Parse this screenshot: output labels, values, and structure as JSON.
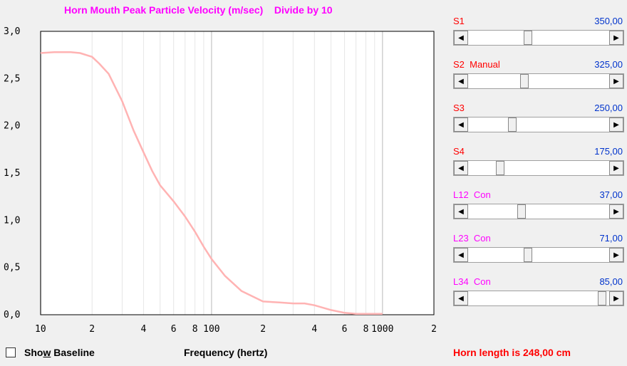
{
  "chart_data": {
    "type": "line",
    "title": "Horn Mouth Peak Particle Velocity (m/sec)    Divide by 10",
    "xlabel": "Frequency (hertz)",
    "ylabel": "",
    "xscale": "log",
    "xlim": [
      10,
      2000
    ],
    "ylim": [
      0,
      3
    ],
    "y_tick_labels": [
      "0,0",
      "0,5",
      "1,0",
      "1,5",
      "2,0",
      "2,5",
      "3,0"
    ],
    "x_tick_labels": [
      "10",
      "2",
      "4",
      "6",
      "8",
      "100",
      "2",
      "4",
      "6",
      "8",
      "1000",
      "2"
    ],
    "grid": true,
    "series": [
      {
        "color": "#ffb3b3",
        "x": [
          10,
          12,
          15,
          17,
          20,
          22,
          25,
          30,
          35,
          40,
          45,
          50,
          60,
          70,
          80,
          90,
          100,
          120,
          150,
          200,
          250,
          300,
          350,
          400,
          500,
          600,
          700,
          800,
          1000
        ],
        "y": [
          2.77,
          2.78,
          2.78,
          2.77,
          2.73,
          2.66,
          2.55,
          2.26,
          1.95,
          1.72,
          1.52,
          1.37,
          1.2,
          1.04,
          0.88,
          0.72,
          0.59,
          0.41,
          0.25,
          0.14,
          0.13,
          0.12,
          0.12,
          0.1,
          0.05,
          0.02,
          0.01,
          0.01,
          0.01
        ]
      }
    ]
  },
  "sliders": [
    {
      "name": "S1",
      "value": "350,00",
      "name_color": "#ff0000",
      "position": 0.42
    },
    {
      "name": "S2  Manual",
      "value": "325,00",
      "name_color": "#ff0000",
      "position": 0.39
    },
    {
      "name": "S3",
      "value": "250,00",
      "name_color": "#ff0000",
      "position": 0.3
    },
    {
      "name": "S4",
      "value": "175,00",
      "name_color": "#ff0000",
      "position": 0.21
    },
    {
      "name": "L12  Con",
      "value": "37,00",
      "name_color": "#ff00ff",
      "position": 0.37
    },
    {
      "name": "L23  Con",
      "value": "71,00",
      "name_color": "#ff00ff",
      "position": 0.42
    },
    {
      "name": "L34  Con",
      "value": "85,00",
      "name_color": "#ff00ff",
      "position": 0.98
    }
  ],
  "bottom": {
    "baseline_pre": "Sho",
    "baseline_u": "w",
    "baseline_post": " Baseline",
    "horn_length": "Horn length is 248,00 cm"
  },
  "colors": {
    "title": "#ff00ff",
    "value": "#0033cc",
    "horn_length": "#ff0000",
    "grid_major": "#d0d0d0",
    "grid_minor": "#e6e6e6"
  }
}
